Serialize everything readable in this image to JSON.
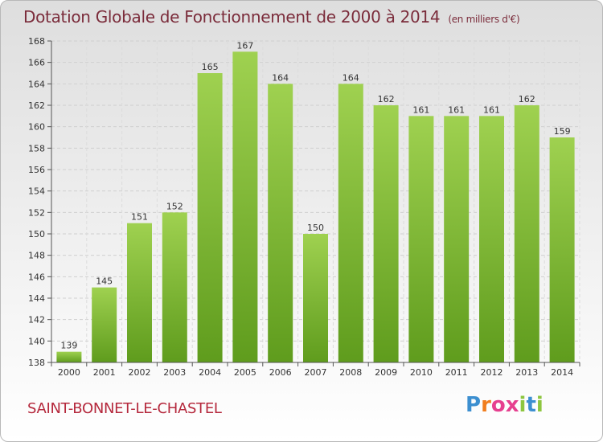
{
  "chart_data": {
    "type": "bar",
    "title": "Dotation Globale de Fonctionnement de 2000 à 2014",
    "subtitle": "(en milliers d'€)",
    "categories": [
      "2000",
      "2001",
      "2002",
      "2003",
      "2004",
      "2005",
      "2006",
      "2007",
      "2008",
      "2009",
      "2010",
      "2011",
      "2012",
      "2013",
      "2014"
    ],
    "values": [
      139,
      145,
      151,
      152,
      165,
      167,
      164,
      150,
      164,
      162,
      161,
      161,
      161,
      162,
      159
    ],
    "ylim": [
      138,
      168
    ],
    "yticks": [
      138,
      140,
      142,
      144,
      146,
      148,
      150,
      152,
      154,
      156,
      158,
      160,
      162,
      164,
      166,
      168
    ],
    "grid": true,
    "bar_color": "#7fba35"
  },
  "footer": {
    "commune": "SAINT-BONNET-LE-CHASTEL",
    "logo_letters": [
      "P",
      "r",
      "o",
      "x",
      "i",
      "t",
      "i"
    ],
    "logo_colors": [
      "#3c8fd0",
      "#f07d1e",
      "#e63f8f",
      "#e63f8f",
      "#8dc63f",
      "#3c8fd0",
      "#8dc63f"
    ]
  }
}
